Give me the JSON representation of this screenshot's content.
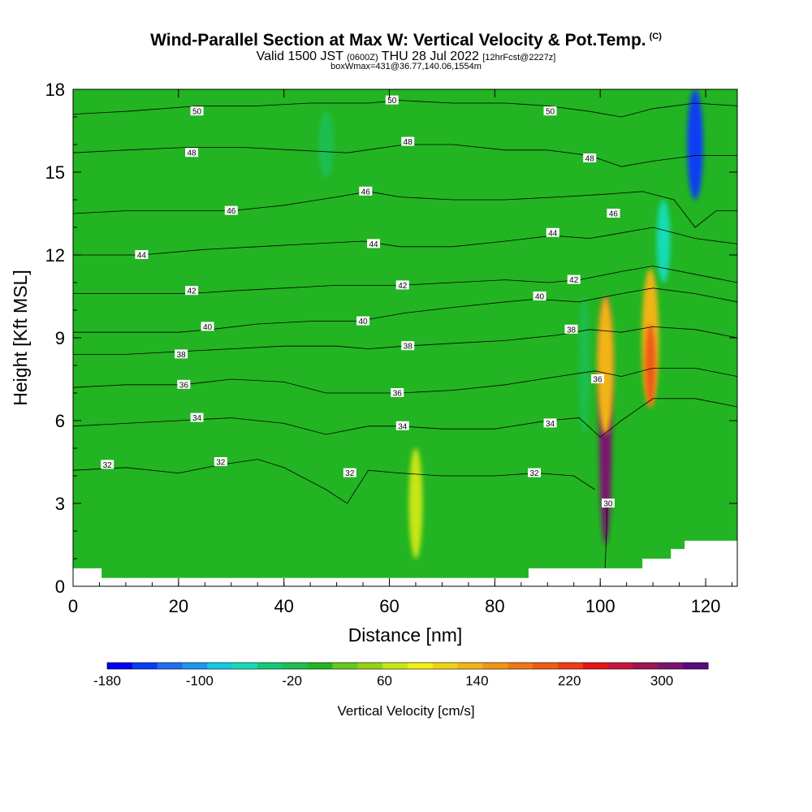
{
  "header": {
    "title_main": "Wind-Parallel Section at Max W: Vertical Velocity & Pot.Temp.",
    "title_sup": "(C)",
    "valid_prefix": "Valid 1500 JST",
    "valid_small": "(0600Z)",
    "valid_date": "THU 28 Jul 2022",
    "valid_fcst": "[12hrFcst@2227z]",
    "box_info": "boxWmax=431@36.77,140.06,1554m"
  },
  "colors": {
    "background_field": "#22b422",
    "contour_line": "#000000",
    "terrain": "#ffffff"
  },
  "chart_data": {
    "type": "heatmap",
    "xlabel": "Distance [nm]",
    "ylabel": "Height [Kft MSL]",
    "xlim": [
      0,
      126
    ],
    "ylim": [
      0,
      18
    ],
    "xticks": [
      0,
      20,
      40,
      60,
      80,
      100,
      120
    ],
    "yticks": [
      0,
      3,
      6,
      9,
      12,
      15,
      18
    ],
    "grid": false,
    "colorbar": {
      "title": "Vertical Velocity [cm/s]",
      "tick_labels": [
        "-180",
        "-100",
        "-20",
        "60",
        "140",
        "220",
        "300"
      ],
      "tick_values": [
        -180,
        -100,
        -20,
        60,
        140,
        220,
        300
      ],
      "range": [
        -180,
        340
      ],
      "colors": [
        "#0000f0",
        "#0a3cf5",
        "#1e6ef0",
        "#1e96f0",
        "#14c8e6",
        "#14dcb4",
        "#14c878",
        "#1ebe50",
        "#22b422",
        "#64c81e",
        "#96d214",
        "#c8e614",
        "#f0f014",
        "#f0d214",
        "#f0b414",
        "#f09614",
        "#f07814",
        "#f05a14",
        "#f03c14",
        "#e61414",
        "#c8143c",
        "#a01450",
        "#7a146e",
        "#5a0a82"
      ]
    },
    "theta_contours": [
      {
        "value": 30,
        "label": "30",
        "points": [
          [
            100.8,
            0.2
          ],
          [
            101.0,
            1.0
          ],
          [
            101.2,
            2.0
          ],
          [
            101.3,
            3.0
          ]
        ]
      },
      {
        "value": 32,
        "label": "32",
        "points": [
          [
            0,
            4.2
          ],
          [
            10,
            4.3
          ],
          [
            20,
            4.1
          ],
          [
            28,
            4.4
          ],
          [
            35,
            4.6
          ],
          [
            40,
            4.3
          ],
          [
            48,
            3.5
          ],
          [
            52,
            3.0
          ],
          [
            56,
            4.2
          ],
          [
            62,
            4.1
          ],
          [
            70,
            4.0
          ],
          [
            80,
            4.0
          ],
          [
            88,
            4.1
          ],
          [
            95,
            4.0
          ],
          [
            99,
            3.5
          ]
        ]
      },
      {
        "value": 34,
        "label": "34",
        "points": [
          [
            0,
            5.8
          ],
          [
            10,
            5.9
          ],
          [
            20,
            6.0
          ],
          [
            30,
            6.1
          ],
          [
            40,
            5.9
          ],
          [
            48,
            5.5
          ],
          [
            56,
            5.8
          ],
          [
            62,
            5.8
          ],
          [
            70,
            5.7
          ],
          [
            80,
            5.7
          ],
          [
            90,
            6.0
          ],
          [
            96,
            6.1
          ],
          [
            100,
            5.4
          ],
          [
            104,
            6.0
          ],
          [
            110,
            6.8
          ],
          [
            118,
            6.8
          ],
          [
            126,
            6.5
          ]
        ]
      },
      {
        "value": 36,
        "label": "36",
        "points": [
          [
            0,
            7.2
          ],
          [
            10,
            7.3
          ],
          [
            21,
            7.3
          ],
          [
            30,
            7.5
          ],
          [
            40,
            7.4
          ],
          [
            48,
            7.0
          ],
          [
            56,
            7.0
          ],
          [
            62,
            7.0
          ],
          [
            72,
            7.1
          ],
          [
            82,
            7.3
          ],
          [
            92,
            7.6
          ],
          [
            99,
            7.8
          ],
          [
            104,
            7.6
          ],
          [
            110,
            7.9
          ],
          [
            118,
            7.9
          ],
          [
            126,
            7.6
          ]
        ]
      },
      {
        "value": 38,
        "label": "38",
        "points": [
          [
            0,
            8.4
          ],
          [
            10,
            8.4
          ],
          [
            20,
            8.5
          ],
          [
            30,
            8.6
          ],
          [
            40,
            8.7
          ],
          [
            50,
            8.7
          ],
          [
            56,
            8.6
          ],
          [
            63,
            8.7
          ],
          [
            72,
            8.8
          ],
          [
            82,
            8.9
          ],
          [
            92,
            9.1
          ],
          [
            98,
            9.3
          ],
          [
            104,
            9.2
          ],
          [
            110,
            9.4
          ],
          [
            118,
            9.3
          ],
          [
            126,
            9.0
          ]
        ]
      },
      {
        "value": 40,
        "label": "40",
        "points": [
          [
            0,
            9.2
          ],
          [
            10,
            9.2
          ],
          [
            20,
            9.2
          ],
          [
            26,
            9.3
          ],
          [
            35,
            9.5
          ],
          [
            45,
            9.6
          ],
          [
            54,
            9.6
          ],
          [
            63,
            9.9
          ],
          [
            72,
            10.1
          ],
          [
            82,
            10.3
          ],
          [
            88,
            10.4
          ],
          [
            96,
            10.3
          ],
          [
            104,
            10.6
          ],
          [
            110,
            10.8
          ],
          [
            118,
            10.6
          ],
          [
            126,
            10.3
          ]
        ]
      },
      {
        "value": 42,
        "label": "42",
        "points": [
          [
            0,
            10.6
          ],
          [
            10,
            10.6
          ],
          [
            22,
            10.6
          ],
          [
            30,
            10.7
          ],
          [
            40,
            10.8
          ],
          [
            50,
            10.9
          ],
          [
            62,
            10.9
          ],
          [
            72,
            11.0
          ],
          [
            82,
            11.1
          ],
          [
            90,
            11.0
          ],
          [
            96,
            11.1
          ],
          [
            104,
            11.4
          ],
          [
            110,
            11.6
          ],
          [
            118,
            11.3
          ],
          [
            126,
            11.0
          ]
        ]
      },
      {
        "value": 44,
        "label": "44",
        "points": [
          [
            0,
            12.0
          ],
          [
            13,
            12.0
          ],
          [
            25,
            12.2
          ],
          [
            35,
            12.3
          ],
          [
            45,
            12.4
          ],
          [
            55,
            12.5
          ],
          [
            62,
            12.3
          ],
          [
            72,
            12.3
          ],
          [
            82,
            12.5
          ],
          [
            91,
            12.7
          ],
          [
            98,
            12.6
          ],
          [
            104,
            12.8
          ],
          [
            110,
            13.0
          ],
          [
            118,
            12.6
          ],
          [
            126,
            12.4
          ]
        ]
      },
      {
        "value": 46,
        "label": "46",
        "points": [
          [
            0,
            13.5
          ],
          [
            10,
            13.6
          ],
          [
            20,
            13.6
          ],
          [
            30,
            13.6
          ],
          [
            40,
            13.8
          ],
          [
            50,
            14.1
          ],
          [
            56,
            14.3
          ],
          [
            62,
            14.1
          ],
          [
            72,
            14.0
          ],
          [
            82,
            14.0
          ],
          [
            92,
            14.1
          ],
          [
            101,
            14.2
          ],
          [
            108,
            14.3
          ],
          [
            114,
            14.0
          ],
          [
            118,
            13.0
          ],
          [
            122,
            13.6
          ],
          [
            126,
            13.6
          ]
        ]
      },
      {
        "value": 48,
        "label": "48",
        "points": [
          [
            0,
            15.7
          ],
          [
            10,
            15.8
          ],
          [
            22,
            15.9
          ],
          [
            32,
            15.9
          ],
          [
            42,
            15.8
          ],
          [
            52,
            15.7
          ],
          [
            63,
            16.0
          ],
          [
            72,
            16.0
          ],
          [
            82,
            15.8
          ],
          [
            90,
            15.8
          ],
          [
            98,
            15.6
          ],
          [
            104,
            15.2
          ],
          [
            110,
            15.4
          ],
          [
            118,
            15.6
          ],
          [
            126,
            15.6
          ]
        ]
      },
      {
        "value": 50,
        "label": "50",
        "points": [
          [
            0,
            17.1
          ],
          [
            10,
            17.2
          ],
          [
            24,
            17.4
          ],
          [
            35,
            17.4
          ],
          [
            45,
            17.5
          ],
          [
            56,
            17.5
          ],
          [
            62,
            17.6
          ],
          [
            72,
            17.5
          ],
          [
            82,
            17.5
          ],
          [
            90,
            17.4
          ],
          [
            98,
            17.2
          ],
          [
            104,
            17.0
          ],
          [
            110,
            17.3
          ],
          [
            118,
            17.5
          ],
          [
            126,
            17.4
          ]
        ]
      }
    ],
    "contour_labels": [
      {
        "text": "50",
        "x": 23.5,
        "y": 17.2
      },
      {
        "text": "50",
        "x": 60.5,
        "y": 17.6
      },
      {
        "text": "50",
        "x": 90.5,
        "y": 17.2
      },
      {
        "text": "48",
        "x": 22.5,
        "y": 15.7
      },
      {
        "text": "48",
        "x": 63.5,
        "y": 16.1
      },
      {
        "text": "48",
        "x": 98,
        "y": 15.5
      },
      {
        "text": "46",
        "x": 30,
        "y": 13.6
      },
      {
        "text": "46",
        "x": 55.5,
        "y": 14.3
      },
      {
        "text": "46",
        "x": 102.5,
        "y": 13.5
      },
      {
        "text": "44",
        "x": 13,
        "y": 12.0
      },
      {
        "text": "44",
        "x": 57,
        "y": 12.4
      },
      {
        "text": "44",
        "x": 91,
        "y": 12.8
      },
      {
        "text": "42",
        "x": 22.5,
        "y": 10.7
      },
      {
        "text": "42",
        "x": 62.5,
        "y": 10.9
      },
      {
        "text": "42",
        "x": 95,
        "y": 11.1
      },
      {
        "text": "40",
        "x": 25.5,
        "y": 9.4
      },
      {
        "text": "40",
        "x": 55,
        "y": 9.6
      },
      {
        "text": "40",
        "x": 88.5,
        "y": 10.5
      },
      {
        "text": "38",
        "x": 20.5,
        "y": 8.4
      },
      {
        "text": "38",
        "x": 63.5,
        "y": 8.7
      },
      {
        "text": "38",
        "x": 94.5,
        "y": 9.3
      },
      {
        "text": "36",
        "x": 21,
        "y": 7.3
      },
      {
        "text": "36",
        "x": 61.5,
        "y": 7.0
      },
      {
        "text": "36",
        "x": 99.5,
        "y": 7.5
      },
      {
        "text": "34",
        "x": 23.5,
        "y": 6.1
      },
      {
        "text": "34",
        "x": 62.5,
        "y": 5.8
      },
      {
        "text": "34",
        "x": 90.5,
        "y": 5.9
      },
      {
        "text": "32",
        "x": 6.5,
        "y": 4.4
      },
      {
        "text": "32",
        "x": 28,
        "y": 4.5
      },
      {
        "text": "32",
        "x": 52.5,
        "y": 4.1
      },
      {
        "text": "32",
        "x": 87.5,
        "y": 4.1
      },
      {
        "text": "30",
        "x": 101.5,
        "y": 3.0
      }
    ],
    "velocity_features": [
      {
        "x": 101,
        "y": 6.0,
        "rx": 1.2,
        "ry": 4.5,
        "value": 300
      },
      {
        "x": 101,
        "y": 8.0,
        "rx": 1.6,
        "ry": 2.5,
        "value": 140
      },
      {
        "x": 109.5,
        "y": 9.0,
        "rx": 1.6,
        "ry": 2.5,
        "value": 140
      },
      {
        "x": 109.5,
        "y": 8.0,
        "rx": 1.0,
        "ry": 1.5,
        "value": 200
      },
      {
        "x": 65,
        "y": 3.0,
        "rx": 1.3,
        "ry": 2.0,
        "value": 60
      },
      {
        "x": 118,
        "y": 16.0,
        "rx": 1.5,
        "ry": 2.0,
        "value": -140
      },
      {
        "x": 112,
        "y": 12.5,
        "rx": 1.3,
        "ry": 1.5,
        "value": -60
      },
      {
        "x": 97,
        "y": 8.0,
        "rx": 1.0,
        "ry": 2.5,
        "value": -20
      },
      {
        "x": 48,
        "y": 16.0,
        "rx": 1.5,
        "ry": 1.2,
        "value": -20
      }
    ],
    "terrain_boundary": [
      [
        0,
        0.65
      ],
      [
        5.4,
        0.65
      ],
      [
        5.4,
        0.3
      ],
      [
        86.4,
        0.3
      ],
      [
        86.4,
        0.65
      ],
      [
        108,
        0.65
      ],
      [
        108,
        1.0
      ],
      [
        113.4,
        1.0
      ],
      [
        113.4,
        1.35
      ],
      [
        116,
        1.35
      ],
      [
        116,
        1.65
      ],
      [
        126,
        1.65
      ],
      [
        126,
        0
      ],
      [
        0,
        0
      ]
    ]
  }
}
